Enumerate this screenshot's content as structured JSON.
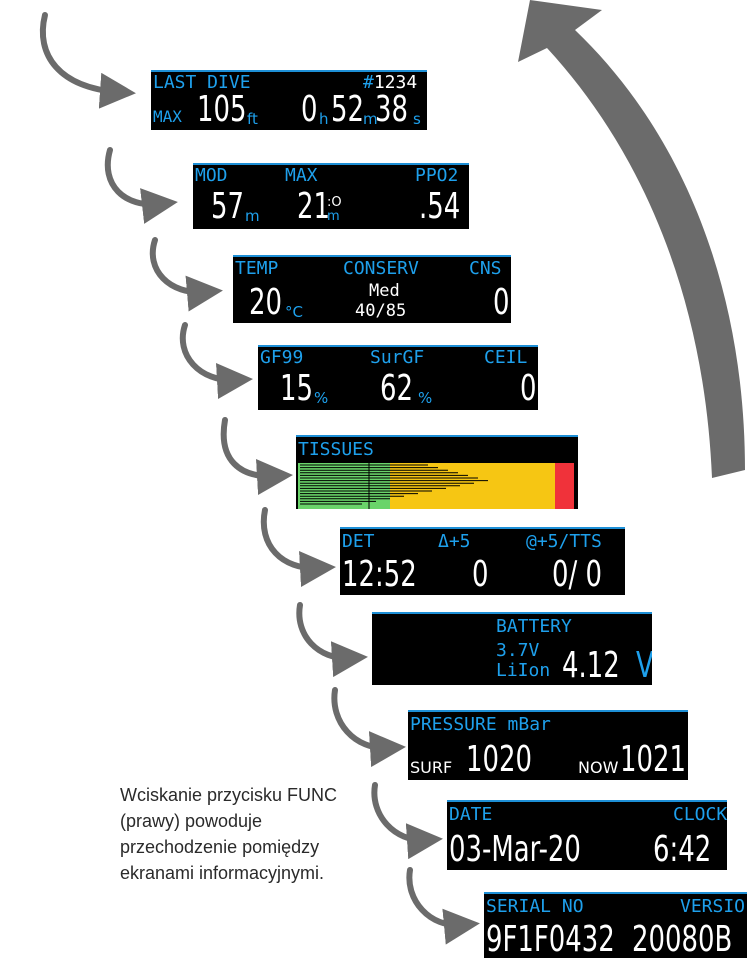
{
  "colors": {
    "label_blue": "#1ea0ec",
    "arrow_gray": "#6b6b6b",
    "tissue_green": "#6ad46a",
    "tissue_yellow": "#f6c613",
    "tissue_red": "#f0323a"
  },
  "last_dive": {
    "title": "LAST DIVE",
    "number": "#1234",
    "max_label": "MAX",
    "depth": "105",
    "depth_unit": "ft",
    "hours": "0",
    "hours_unit": "h",
    "minutes": "52",
    "minutes_unit": "m",
    "seconds": "38",
    "seconds_unit": "s"
  },
  "mod": {
    "mod_label": "MOD",
    "max_label": "MAX",
    "ppo2_label": "PPO2",
    "mod_value": "57",
    "mod_unit": "m",
    "max_value": "21",
    "max_unit": ":O",
    "max_unit2": "m",
    "ppo2_value": ".54"
  },
  "temp": {
    "temp_label": "TEMP",
    "conserv_label": "CONSERV",
    "cns_label": "CNS",
    "temp_value": "20",
    "temp_unit": "°C",
    "conserv_value": "Med",
    "conserv_gf": "40/85",
    "cns_value": "0"
  },
  "gf": {
    "gf99_label": "GF99",
    "surgf_label": "SurGF",
    "ceil_label": "CEIL",
    "gf99_value": "15",
    "gf99_unit": "%",
    "surgf_value": "62",
    "surgf_unit": "%",
    "ceil_value": "0"
  },
  "tissues": {
    "title": "TISSUES"
  },
  "det": {
    "det_label": "DET",
    "delta_label": "Δ+5",
    "tts_label": "@+5/TTS",
    "det_value": "12:52",
    "delta_value": "0",
    "tts_value": "0/ 0"
  },
  "battery": {
    "title": "BATTERY",
    "type_line1": "3.7V",
    "type_line2": "LiIon",
    "voltage": "4.12",
    "voltage_unit": "V"
  },
  "pressure": {
    "title": "PRESSURE mBar",
    "surf_label": "SURF",
    "surf_value": "1020",
    "now_label": "NOW",
    "now_value": "1021"
  },
  "datetime": {
    "date_label": "DATE",
    "clock_label": "CLOCK",
    "date_value": "03-Mar-20",
    "clock_value": "6:42"
  },
  "serial": {
    "serial_label": "SERIAL NO",
    "version_label": "VERSIO",
    "serial_value": "9F1F0432",
    "version_value": "20080B"
  },
  "caption": "Wciskanie przycisku FUNC (prawy) powoduje przechodzenie pomiędzy ekranami informacyjnymi."
}
